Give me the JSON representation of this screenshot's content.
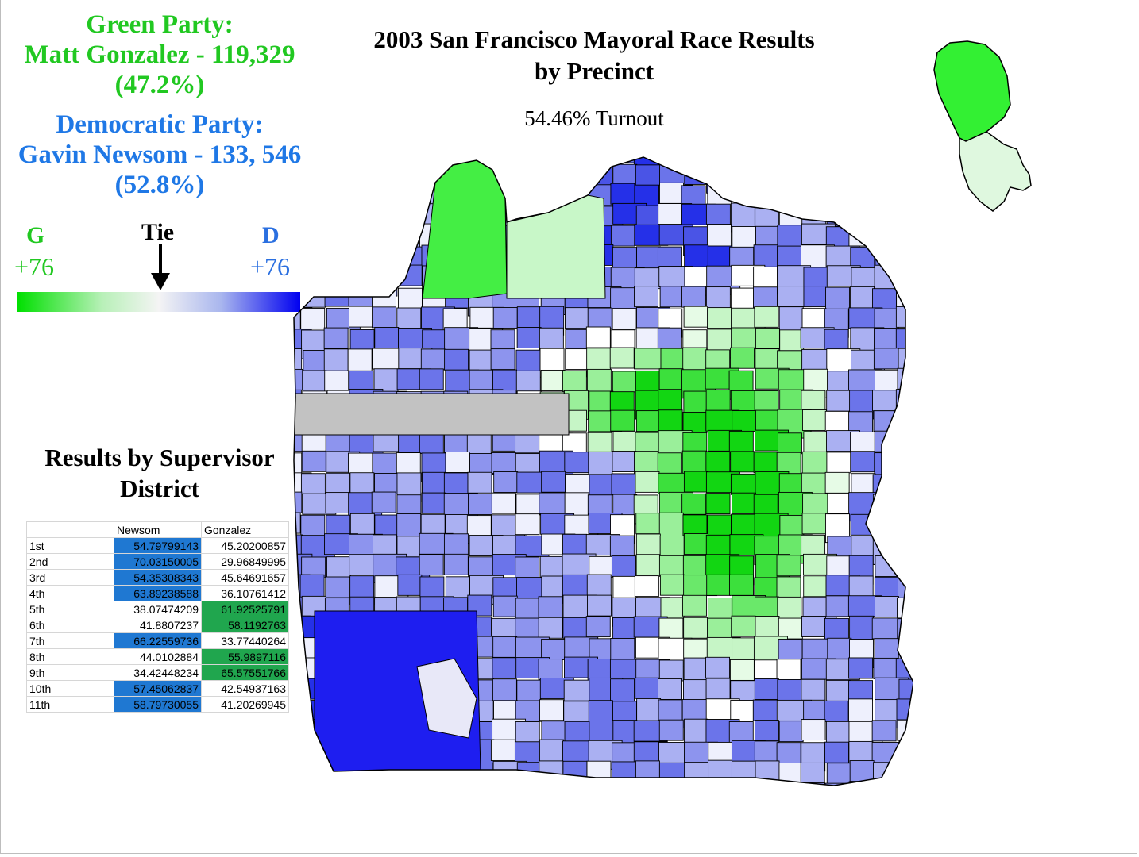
{
  "title_line1": "2003 San Francisco Mayoral Race Results",
  "title_line2": "by Precinct",
  "turnout": "54.46% Turnout",
  "green": {
    "line1": "Green Party:",
    "line2": "Matt Gonzalez - 119,329",
    "line3": "(47.2%)",
    "color": "#21c821"
  },
  "democratic": {
    "line1": "Democratic Party:",
    "line2": "Gavin Newsom - 133, 546",
    "line3": "(52.8%)",
    "color": "#1f78e6"
  },
  "legend": {
    "left_letter": "G",
    "left_value": "+76",
    "center": "Tie",
    "right_letter": "D",
    "right_value": "+76",
    "left_color": "#00e000",
    "right_color": "#0000f0",
    "arrow_icon": "down-arrow-icon"
  },
  "district_title_line1": "Results by Supervisor",
  "district_title_line2": "District",
  "table": {
    "headers": [
      "",
      "Newsom",
      "Gonzalez"
    ],
    "rows": [
      {
        "district": "1st",
        "newsom": "54.79799143",
        "gonzalez": "45.20200857",
        "winner": "newsom"
      },
      {
        "district": "2nd",
        "newsom": "70.03150005",
        "gonzalez": "29.96849995",
        "winner": "newsom"
      },
      {
        "district": "3rd",
        "newsom": "54.35308343",
        "gonzalez": "45.64691657",
        "winner": "newsom"
      },
      {
        "district": "4th",
        "newsom": "63.89238588",
        "gonzalez": "36.10761412",
        "winner": "newsom"
      },
      {
        "district": "5th",
        "newsom": "38.07474209",
        "gonzalez": "61.92525791",
        "winner": "gonzalez"
      },
      {
        "district": "6th",
        "newsom": "41.8807237",
        "gonzalez": "58.1192763",
        "winner": "gonzalez"
      },
      {
        "district": "7th",
        "newsom": "66.22559736",
        "gonzalez": "33.77440264",
        "winner": "newsom"
      },
      {
        "district": "8th",
        "newsom": "44.0102884",
        "gonzalez": "55.9897116",
        "winner": "gonzalez"
      },
      {
        "district": "9th",
        "newsom": "34.42448234",
        "gonzalez": "65.57551766",
        "winner": "gonzalez"
      },
      {
        "district": "10th",
        "newsom": "57.45062837",
        "gonzalez": "42.54937163",
        "winner": "newsom"
      },
      {
        "district": "11th",
        "newsom": "58.79730055",
        "gonzalez": "41.20269945",
        "winner": "newsom"
      }
    ],
    "newsom_win_color": "#1f78d2",
    "gonzalez_win_color": "#20a64e"
  }
}
